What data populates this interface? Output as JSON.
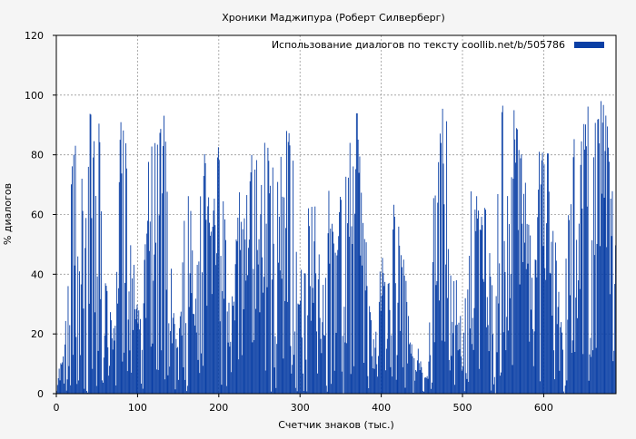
{
  "chart_data": {
    "type": "bar",
    "title": "Хроники Маджипура (Роберт Силверберг)",
    "xlabel": "Счетчик знаков (тыс.)",
    "ylabel": "% диалогов",
    "xlim": [
      0,
      689
    ],
    "ylim": [
      0,
      120
    ],
    "x_ticks": [
      0,
      100,
      200,
      300,
      400,
      500,
      600
    ],
    "y_ticks": [
      0,
      20,
      40,
      60,
      80,
      100,
      120
    ],
    "grid": true,
    "legend_position": "top-right",
    "bar_color": "#0a3fa5",
    "bin_width_k": 1,
    "series": [
      {
        "name": "Использование диалогов по тексту  coollib.net/b/505786",
        "anchors": [
          [
            0,
            0
          ],
          [
            5,
            12
          ],
          [
            10,
            15
          ],
          [
            16,
            55
          ],
          [
            22,
            92
          ],
          [
            28,
            68
          ],
          [
            35,
            80
          ],
          [
            42,
            95
          ],
          [
            48,
            88
          ],
          [
            55,
            96
          ],
          [
            60,
            55
          ],
          [
            66,
            28
          ],
          [
            72,
            20
          ],
          [
            78,
            92
          ],
          [
            84,
            98
          ],
          [
            90,
            60
          ],
          [
            96,
            42
          ],
          [
            100,
            30
          ],
          [
            106,
            22
          ],
          [
            112,
            78
          ],
          [
            118,
            85
          ],
          [
            124,
            98
          ],
          [
            130,
            100
          ],
          [
            136,
            88
          ],
          [
            142,
            40
          ],
          [
            148,
            18
          ],
          [
            154,
            35
          ],
          [
            160,
            82
          ],
          [
            166,
            62
          ],
          [
            172,
            35
          ],
          [
            178,
            70
          ],
          [
            184,
            88
          ],
          [
            190,
            52
          ],
          [
            196,
            88
          ],
          [
            202,
            80
          ],
          [
            208,
            62
          ],
          [
            214,
            28
          ],
          [
            220,
            45
          ],
          [
            226,
            72
          ],
          [
            232,
            60
          ],
          [
            238,
            85
          ],
          [
            244,
            92
          ],
          [
            250,
            62
          ],
          [
            256,
            88
          ],
          [
            262,
            92
          ],
          [
            268,
            80
          ],
          [
            274,
            72
          ],
          [
            280,
            92
          ],
          [
            286,
            100
          ],
          [
            292,
            82
          ],
          [
            298,
            28
          ],
          [
            304,
            52
          ],
          [
            310,
            62
          ],
          [
            316,
            75
          ],
          [
            322,
            52
          ],
          [
            328,
            40
          ],
          [
            334,
            78
          ],
          [
            340,
            62
          ],
          [
            346,
            52
          ],
          [
            352,
            85
          ],
          [
            358,
            80
          ],
          [
            364,
            92
          ],
          [
            370,
            100
          ],
          [
            376,
            70
          ],
          [
            382,
            50
          ],
          [
            388,
            25
          ],
          [
            394,
            22
          ],
          [
            400,
            50
          ],
          [
            406,
            35
          ],
          [
            412,
            60
          ],
          [
            418,
            72
          ],
          [
            424,
            56
          ],
          [
            430,
            40
          ],
          [
            436,
            18
          ],
          [
            442,
            20
          ],
          [
            448,
            12
          ],
          [
            452,
            5
          ],
          [
            458,
            8
          ],
          [
            462,
            55
          ],
          [
            466,
            95
          ],
          [
            470,
            80
          ],
          [
            476,
            100
          ],
          [
            482,
            95
          ],
          [
            488,
            45
          ],
          [
            494,
            38
          ],
          [
            500,
            22
          ],
          [
            506,
            40
          ],
          [
            512,
            78
          ],
          [
            518,
            72
          ],
          [
            524,
            60
          ],
          [
            530,
            70
          ],
          [
            536,
            45
          ],
          [
            540,
            30
          ],
          [
            546,
            95
          ],
          [
            552,
            98
          ],
          [
            558,
            60
          ],
          [
            564,
            100
          ],
          [
            570,
            95
          ],
          [
            576,
            80
          ],
          [
            582,
            60
          ],
          [
            588,
            35
          ],
          [
            594,
            85
          ],
          [
            600,
            90
          ],
          [
            606,
            80
          ],
          [
            612,
            65
          ],
          [
            618,
            35
          ],
          [
            624,
            25
          ],
          [
            630,
            60
          ],
          [
            636,
            88
          ],
          [
            642,
            78
          ],
          [
            648,
            92
          ],
          [
            654,
            100
          ],
          [
            660,
            90
          ],
          [
            666,
            100
          ],
          [
            672,
            98
          ],
          [
            678,
            100
          ],
          [
            684,
            70
          ],
          [
            689,
            55
          ]
        ]
      }
    ]
  }
}
